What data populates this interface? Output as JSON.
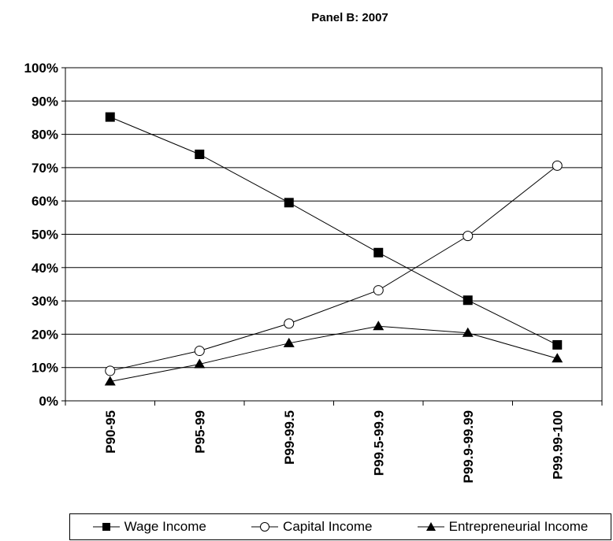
{
  "chart_data": {
    "type": "line",
    "title": "Panel B: 2007",
    "categories": [
      "P90-95",
      "P95-99",
      "P99-99.5",
      "P99.5-99.9",
      "P99.9-99.99",
      "P99.99-100"
    ],
    "ylim": [
      0,
      100
    ],
    "yticks": [
      0,
      10,
      20,
      30,
      40,
      50,
      60,
      70,
      80,
      90,
      100
    ],
    "ytick_labels": [
      "0%",
      "10%",
      "20%",
      "30%",
      "40%",
      "50%",
      "60%",
      "70%",
      "80%",
      "90%",
      "100%"
    ],
    "grid": true,
    "legend_position": "bottom",
    "series": [
      {
        "name": "Wage Income",
        "marker": "square",
        "values": [
          85.2,
          74.0,
          59.5,
          44.5,
          30.2,
          16.8
        ]
      },
      {
        "name": "Capital Income",
        "marker": "circle",
        "values": [
          9.0,
          15.0,
          23.2,
          33.2,
          49.5,
          70.6
        ]
      },
      {
        "name": "Entrepreneurial Income",
        "marker": "triangle",
        "values": [
          5.8,
          11.0,
          17.3,
          22.4,
          20.4,
          12.7
        ]
      }
    ]
  }
}
